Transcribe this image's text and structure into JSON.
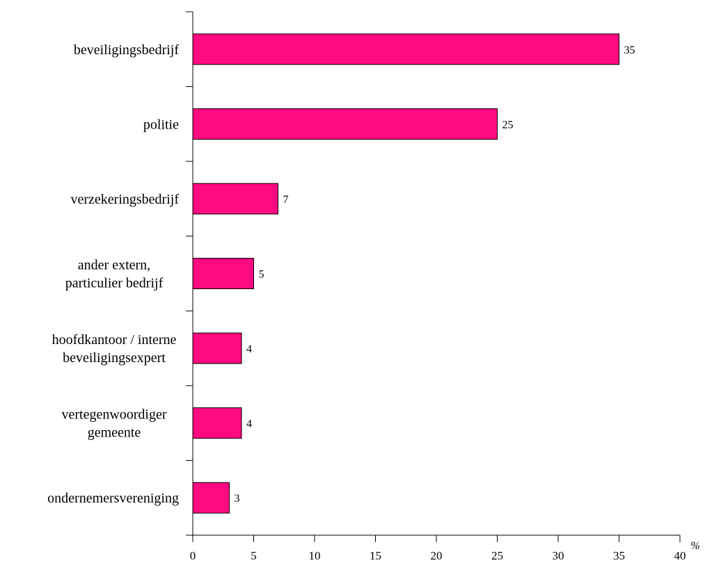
{
  "chart_data": {
    "type": "bar",
    "orientation": "horizontal",
    "categories": [
      [
        "beveiligingsbedrijf"
      ],
      [
        "politie"
      ],
      [
        "verzekeringsbedrijf"
      ],
      [
        "ander extern,",
        "particulier bedrijf"
      ],
      [
        "hoofdkantoor / interne",
        "beveiligingsexpert"
      ],
      [
        "vertegenwoordiger",
        "gemeente"
      ],
      [
        "ondernemersvereniging"
      ]
    ],
    "values": [
      35,
      25,
      7,
      5,
      4,
      4,
      3
    ],
    "data_labels": [
      "35",
      "25",
      "7",
      "5",
      "4",
      "4",
      "3"
    ],
    "x_ticks": [
      "0",
      "5",
      "10",
      "15",
      "20",
      "25",
      "30",
      "35",
      "40"
    ],
    "xlim": [
      0,
      40
    ],
    "unit": "%",
    "grid": false,
    "legend": "none",
    "colors": {
      "bar_fill": "#FF0A80",
      "bar_stroke": "#000000",
      "axis": "#000000"
    }
  }
}
